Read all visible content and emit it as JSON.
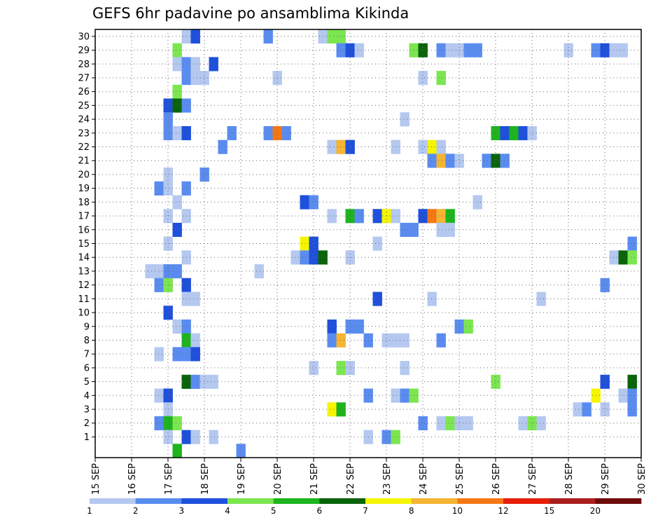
{
  "chart_data": {
    "type": "heatmap",
    "title": "GEFS 6hr padavine po ansamblima Kikinda",
    "y_members": [
      1,
      30
    ],
    "y_ticks": [
      "1",
      "2",
      "3",
      "4",
      "5",
      "6",
      "7",
      "8",
      "9",
      "10",
      "11",
      "12",
      "13",
      "14",
      "15",
      "16",
      "17",
      "18",
      "19",
      "20",
      "21",
      "22",
      "23",
      "24",
      "25",
      "26",
      "27",
      "28",
      "29",
      "30"
    ],
    "x_ticks": [
      "15 SEP",
      "16 SEP",
      "17 SEP",
      "18 SEP",
      "19 SEP",
      "20 SEP",
      "21 SEP",
      "22 SEP",
      "23 SEP",
      "24 SEP",
      "25 SEP",
      "26 SEP",
      "27 SEP",
      "28 SEP",
      "29 SEP",
      "30 SEP"
    ],
    "grid": true,
    "colorbar": {
      "labels": [
        "1",
        "2",
        "3",
        "4",
        "5",
        "6",
        "7",
        "8",
        "10",
        "12",
        "15",
        "20"
      ],
      "colors": [
        "#b4c8f0",
        "#5a8cf0",
        "#1e50dc",
        "#7ce650",
        "#1eb41e",
        "#0a640a",
        "#f5f500",
        "#f5b432",
        "#f57814",
        "#e61e0a",
        "#aa1e1e",
        "#6e0a0a"
      ]
    },
    "cells": [
      {
        "day": 17.5,
        "member": 30,
        "color": 0
      },
      {
        "day": 17.75,
        "member": 30,
        "color": 2
      },
      {
        "day": 19.75,
        "member": 30,
        "color": 1
      },
      {
        "day": 21.25,
        "member": 30,
        "color": 0
      },
      {
        "day": 21.5,
        "member": 30,
        "color": 3
      },
      {
        "day": 21.75,
        "member": 30,
        "color": 3
      },
      {
        "day": 17.25,
        "member": 29,
        "color": 3
      },
      {
        "day": 21.75,
        "member": 29,
        "color": 1
      },
      {
        "day": 22.0,
        "member": 29,
        "color": 2
      },
      {
        "day": 22.25,
        "member": 29,
        "color": 0
      },
      {
        "day": 23.75,
        "member": 29,
        "color": 3
      },
      {
        "day": 24.0,
        "member": 29,
        "color": 5
      },
      {
        "day": 24.5,
        "member": 29,
        "color": 1
      },
      {
        "day": 24.75,
        "member": 29,
        "color": 0
      },
      {
        "day": 25.0,
        "member": 29,
        "color": 0
      },
      {
        "day": 25.25,
        "member": 29,
        "color": 1
      },
      {
        "day": 25.5,
        "member": 29,
        "color": 1
      },
      {
        "day": 28.0,
        "member": 29,
        "color": 0
      },
      {
        "day": 28.75,
        "member": 29,
        "color": 1
      },
      {
        "day": 29.0,
        "member": 29,
        "color": 2
      },
      {
        "day": 29.25,
        "member": 29,
        "color": 0
      },
      {
        "day": 29.5,
        "member": 29,
        "color": 0
      },
      {
        "day": 17.25,
        "member": 28,
        "color": 0
      },
      {
        "day": 17.5,
        "member": 28,
        "color": 1
      },
      {
        "day": 17.75,
        "member": 28,
        "color": 0
      },
      {
        "day": 18.25,
        "member": 28,
        "color": 2
      },
      {
        "day": 17.5,
        "member": 27,
        "color": 1
      },
      {
        "day": 17.75,
        "member": 27,
        "color": 0
      },
      {
        "day": 18.0,
        "member": 27,
        "color": 0
      },
      {
        "day": 20.0,
        "member": 27,
        "color": 0
      },
      {
        "day": 24.0,
        "member": 27,
        "color": 0
      },
      {
        "day": 24.5,
        "member": 27,
        "color": 3
      },
      {
        "day": 17.25,
        "member": 26,
        "color": 3
      },
      {
        "day": 17.0,
        "member": 25,
        "color": 2
      },
      {
        "day": 17.25,
        "member": 25,
        "color": 5
      },
      {
        "day": 17.5,
        "member": 25,
        "color": 1
      },
      {
        "day": 17.0,
        "member": 24,
        "color": 1
      },
      {
        "day": 23.5,
        "member": 24,
        "color": 0
      },
      {
        "day": 17.0,
        "member": 23,
        "color": 1
      },
      {
        "day": 17.25,
        "member": 23,
        "color": 0
      },
      {
        "day": 17.5,
        "member": 23,
        "color": 2
      },
      {
        "day": 18.75,
        "member": 23,
        "color": 1
      },
      {
        "day": 19.75,
        "member": 23,
        "color": 1
      },
      {
        "day": 20.0,
        "member": 23,
        "color": 8
      },
      {
        "day": 20.25,
        "member": 23,
        "color": 1
      },
      {
        "day": 26.0,
        "member": 23,
        "color": 4
      },
      {
        "day": 26.25,
        "member": 23,
        "color": 2
      },
      {
        "day": 26.5,
        "member": 23,
        "color": 4
      },
      {
        "day": 26.75,
        "member": 23,
        "color": 2
      },
      {
        "day": 27.0,
        "member": 23,
        "color": 0
      },
      {
        "day": 18.5,
        "member": 22,
        "color": 1
      },
      {
        "day": 21.5,
        "member": 22,
        "color": 0
      },
      {
        "day": 21.75,
        "member": 22,
        "color": 7
      },
      {
        "day": 22.0,
        "member": 22,
        "color": 2
      },
      {
        "day": 23.25,
        "member": 22,
        "color": 0
      },
      {
        "day": 24.0,
        "member": 22,
        "color": 0
      },
      {
        "day": 24.25,
        "member": 22,
        "color": 6
      },
      {
        "day": 24.5,
        "member": 22,
        "color": 0
      },
      {
        "day": 24.25,
        "member": 21,
        "color": 1
      },
      {
        "day": 24.5,
        "member": 21,
        "color": 7
      },
      {
        "day": 24.75,
        "member": 21,
        "color": 1
      },
      {
        "day": 25.0,
        "member": 21,
        "color": 0
      },
      {
        "day": 25.75,
        "member": 21,
        "color": 1
      },
      {
        "day": 26.0,
        "member": 21,
        "color": 5
      },
      {
        "day": 26.25,
        "member": 21,
        "color": 1
      },
      {
        "day": 17.0,
        "member": 20,
        "color": 0
      },
      {
        "day": 18.0,
        "member": 20,
        "color": 1
      },
      {
        "day": 16.75,
        "member": 19,
        "color": 1
      },
      {
        "day": 17.0,
        "member": 19,
        "color": 0
      },
      {
        "day": 17.5,
        "member": 19,
        "color": 1
      },
      {
        "day": 17.25,
        "member": 18,
        "color": 0
      },
      {
        "day": 20.75,
        "member": 18,
        "color": 2
      },
      {
        "day": 21.0,
        "member": 18,
        "color": 1
      },
      {
        "day": 25.5,
        "member": 18,
        "color": 0
      },
      {
        "day": 17.0,
        "member": 17,
        "color": 0
      },
      {
        "day": 17.5,
        "member": 17,
        "color": 0
      },
      {
        "day": 21.5,
        "member": 17,
        "color": 0
      },
      {
        "day": 22.0,
        "member": 17,
        "color": 4
      },
      {
        "day": 22.25,
        "member": 17,
        "color": 1
      },
      {
        "day": 22.75,
        "member": 17,
        "color": 2
      },
      {
        "day": 23.0,
        "member": 17,
        "color": 6
      },
      {
        "day": 23.25,
        "member": 17,
        "color": 0
      },
      {
        "day": 24.0,
        "member": 17,
        "color": 2
      },
      {
        "day": 24.25,
        "member": 17,
        "color": 8
      },
      {
        "day": 24.5,
        "member": 17,
        "color": 7
      },
      {
        "day": 24.75,
        "member": 17,
        "color": 4
      },
      {
        "day": 17.25,
        "member": 16,
        "color": 2
      },
      {
        "day": 23.5,
        "member": 16,
        "color": 1
      },
      {
        "day": 23.75,
        "member": 16,
        "color": 1
      },
      {
        "day": 24.5,
        "member": 16,
        "color": 0
      },
      {
        "day": 24.75,
        "member": 16,
        "color": 0
      },
      {
        "day": 17.0,
        "member": 15,
        "color": 0
      },
      {
        "day": 20.75,
        "member": 15,
        "color": 6
      },
      {
        "day": 21.0,
        "member": 15,
        "color": 2
      },
      {
        "day": 22.75,
        "member": 15,
        "color": 0
      },
      {
        "day": 29.75,
        "member": 15,
        "color": 1
      },
      {
        "day": 17.5,
        "member": 14,
        "color": 0
      },
      {
        "day": 20.5,
        "member": 14,
        "color": 0
      },
      {
        "day": 20.75,
        "member": 14,
        "color": 1
      },
      {
        "day": 21.0,
        "member": 14,
        "color": 2
      },
      {
        "day": 21.25,
        "member": 14,
        "color": 5
      },
      {
        "day": 22.0,
        "member": 14,
        "color": 0
      },
      {
        "day": 29.25,
        "member": 14,
        "color": 0
      },
      {
        "day": 29.5,
        "member": 14,
        "color": 5
      },
      {
        "day": 29.75,
        "member": 14,
        "color": 3
      },
      {
        "day": 16.5,
        "member": 13,
        "color": 0
      },
      {
        "day": 16.75,
        "member": 13,
        "color": 0
      },
      {
        "day": 17.0,
        "member": 13,
        "color": 1
      },
      {
        "day": 17.25,
        "member": 13,
        "color": 1
      },
      {
        "day": 19.5,
        "member": 13,
        "color": 0
      },
      {
        "day": 16.75,
        "member": 12,
        "color": 1
      },
      {
        "day": 17.0,
        "member": 12,
        "color": 3
      },
      {
        "day": 17.5,
        "member": 12,
        "color": 2
      },
      {
        "day": 29.0,
        "member": 12,
        "color": 1
      },
      {
        "day": 17.5,
        "member": 11,
        "color": 0
      },
      {
        "day": 17.75,
        "member": 11,
        "color": 0
      },
      {
        "day": 22.75,
        "member": 11,
        "color": 2
      },
      {
        "day": 24.25,
        "member": 11,
        "color": 0
      },
      {
        "day": 27.25,
        "member": 11,
        "color": 0
      },
      {
        "day": 17.0,
        "member": 10,
        "color": 2
      },
      {
        "day": 17.25,
        "member": 9,
        "color": 0
      },
      {
        "day": 17.5,
        "member": 9,
        "color": 1
      },
      {
        "day": 21.5,
        "member": 9,
        "color": 2
      },
      {
        "day": 22.0,
        "member": 9,
        "color": 1
      },
      {
        "day": 22.25,
        "member": 9,
        "color": 1
      },
      {
        "day": 25.0,
        "member": 9,
        "color": 1
      },
      {
        "day": 25.25,
        "member": 9,
        "color": 3
      },
      {
        "day": 17.5,
        "member": 8,
        "color": 4
      },
      {
        "day": 17.75,
        "member": 8,
        "color": 0
      },
      {
        "day": 21.5,
        "member": 8,
        "color": 1
      },
      {
        "day": 21.75,
        "member": 8,
        "color": 7
      },
      {
        "day": 22.5,
        "member": 8,
        "color": 1
      },
      {
        "day": 23.0,
        "member": 8,
        "color": 0
      },
      {
        "day": 23.25,
        "member": 8,
        "color": 0
      },
      {
        "day": 23.5,
        "member": 8,
        "color": 0
      },
      {
        "day": 24.5,
        "member": 8,
        "color": 1
      },
      {
        "day": 16.75,
        "member": 7,
        "color": 0
      },
      {
        "day": 17.25,
        "member": 7,
        "color": 1
      },
      {
        "day": 17.5,
        "member": 7,
        "color": 1
      },
      {
        "day": 17.75,
        "member": 7,
        "color": 2
      },
      {
        "day": 21.0,
        "member": 6,
        "color": 0
      },
      {
        "day": 21.75,
        "member": 6,
        "color": 3
      },
      {
        "day": 22.0,
        "member": 6,
        "color": 0
      },
      {
        "day": 23.5,
        "member": 6,
        "color": 0
      },
      {
        "day": 17.5,
        "member": 5,
        "color": 5
      },
      {
        "day": 17.75,
        "member": 5,
        "color": 1
      },
      {
        "day": 18.0,
        "member": 5,
        "color": 0
      },
      {
        "day": 18.25,
        "member": 5,
        "color": 0
      },
      {
        "day": 26.0,
        "member": 5,
        "color": 3
      },
      {
        "day": 29.0,
        "member": 5,
        "color": 2
      },
      {
        "day": 29.75,
        "member": 5,
        "color": 5
      },
      {
        "day": 16.75,
        "member": 4,
        "color": 0
      },
      {
        "day": 17.0,
        "member": 4,
        "color": 2
      },
      {
        "day": 22.5,
        "member": 4,
        "color": 1
      },
      {
        "day": 23.25,
        "member": 4,
        "color": 0
      },
      {
        "day": 23.5,
        "member": 4,
        "color": 1
      },
      {
        "day": 23.75,
        "member": 4,
        "color": 3
      },
      {
        "day": 28.75,
        "member": 4,
        "color": 6
      },
      {
        "day": 29.5,
        "member": 4,
        "color": 0
      },
      {
        "day": 29.75,
        "member": 4,
        "color": 1
      },
      {
        "day": 17.0,
        "member": 3,
        "color": 0
      },
      {
        "day": 21.5,
        "member": 3,
        "color": 6
      },
      {
        "day": 21.75,
        "member": 3,
        "color": 4
      },
      {
        "day": 28.25,
        "member": 3,
        "color": 0
      },
      {
        "day": 28.5,
        "member": 3,
        "color": 1
      },
      {
        "day": 29.0,
        "member": 3,
        "color": 0
      },
      {
        "day": 29.75,
        "member": 3,
        "color": 1
      },
      {
        "day": 16.75,
        "member": 2,
        "color": 1
      },
      {
        "day": 17.0,
        "member": 2,
        "color": 4
      },
      {
        "day": 17.25,
        "member": 2,
        "color": 3
      },
      {
        "day": 24.0,
        "member": 2,
        "color": 1
      },
      {
        "day": 24.5,
        "member": 2,
        "color": 0
      },
      {
        "day": 24.75,
        "member": 2,
        "color": 3
      },
      {
        "day": 25.0,
        "member": 2,
        "color": 0
      },
      {
        "day": 25.25,
        "member": 2,
        "color": 0
      },
      {
        "day": 26.75,
        "member": 2,
        "color": 0
      },
      {
        "day": 27.0,
        "member": 2,
        "color": 3
      },
      {
        "day": 27.25,
        "member": 2,
        "color": 0
      },
      {
        "day": 17.0,
        "member": 1,
        "color": 0
      },
      {
        "day": 17.5,
        "member": 1,
        "color": 2
      },
      {
        "day": 17.75,
        "member": 1,
        "color": 0
      },
      {
        "day": 18.25,
        "member": 1,
        "color": 0
      },
      {
        "day": 22.5,
        "member": 1,
        "color": 0
      },
      {
        "day": 23.0,
        "member": 1,
        "color": 1
      },
      {
        "day": 23.25,
        "member": 1,
        "color": 3
      },
      {
        "day": 17.25,
        "member": 0,
        "color": 4
      },
      {
        "day": 19.0,
        "member": 0,
        "color": 1
      }
    ]
  }
}
